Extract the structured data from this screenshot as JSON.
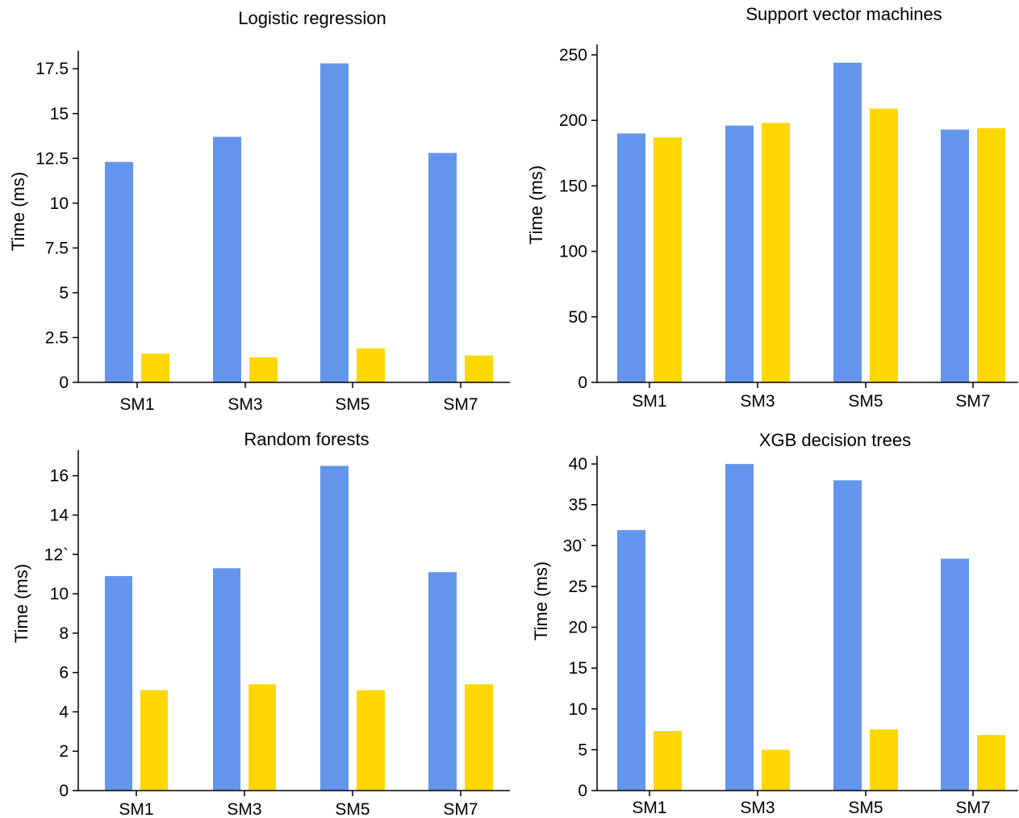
{
  "colors": {
    "series_a": "#6495ED",
    "series_b": "#FFD700",
    "axis": "#000000"
  },
  "chart_data": [
    {
      "type": "bar",
      "title": "Logistic regression",
      "ylabel": "Time (ms)",
      "categories": [
        "SM1",
        "SM3",
        "SM5",
        "SM7"
      ],
      "ylim": [
        0,
        18.5
      ],
      "yticks": [
        0,
        2.5,
        5,
        7.5,
        10,
        12.5,
        15,
        17.5
      ],
      "ytick_labels": [
        "0",
        "2.5",
        "5",
        "7.5",
        "10",
        "12.5",
        "15",
        "17.5"
      ],
      "series": [
        {
          "values": [
            12.3,
            13.7,
            17.8,
            12.8
          ]
        },
        {
          "values": [
            1.6,
            1.4,
            1.9,
            1.5
          ]
        }
      ]
    },
    {
      "type": "bar",
      "title": "Support vector machines",
      "ylabel": "Time (ms)",
      "categories": [
        "SM1",
        "SM3",
        "SM5",
        "SM7"
      ],
      "ylim": [
        0,
        258
      ],
      "yticks": [
        0,
        50,
        100,
        150,
        200,
        250
      ],
      "ytick_labels": [
        "0",
        "50",
        "100",
        "150",
        "200",
        "250"
      ],
      "series": [
        {
          "values": [
            190,
            196,
            244,
            193
          ]
        },
        {
          "values": [
            187,
            198,
            209,
            194
          ]
        }
      ]
    },
    {
      "type": "bar",
      "title": "Random forests",
      "ylabel": "Time (ms)",
      "categories": [
        "SM1",
        "SM3",
        "SM5",
        "SM7"
      ],
      "ylim": [
        0,
        17.3
      ],
      "yticks": [
        0,
        2,
        4,
        6,
        8,
        10,
        12,
        14,
        16
      ],
      "ytick_labels": [
        "0",
        "2",
        "4",
        "6",
        "8",
        "10",
        "12`",
        "14",
        "16"
      ],
      "series": [
        {
          "values": [
            10.9,
            11.3,
            16.5,
            11.1
          ]
        },
        {
          "values": [
            5.1,
            5.4,
            5.1,
            5.4
          ]
        }
      ]
    },
    {
      "type": "bar",
      "title": "XGB decision trees",
      "ylabel": "Time (ms)",
      "categories": [
        "SM1",
        "SM3",
        "SM5",
        "SM7"
      ],
      "ylim": [
        0,
        41
      ],
      "yticks": [
        0,
        5,
        10,
        15,
        20,
        25,
        30,
        35,
        40
      ],
      "ytick_labels": [
        "0",
        "5",
        "10",
        "15",
        "20",
        "25",
        "30`",
        "35",
        "40"
      ],
      "series": [
        {
          "values": [
            31.9,
            40.0,
            38.0,
            28.4
          ]
        },
        {
          "values": [
            7.3,
            5.0,
            7.5,
            6.8
          ]
        }
      ]
    }
  ]
}
